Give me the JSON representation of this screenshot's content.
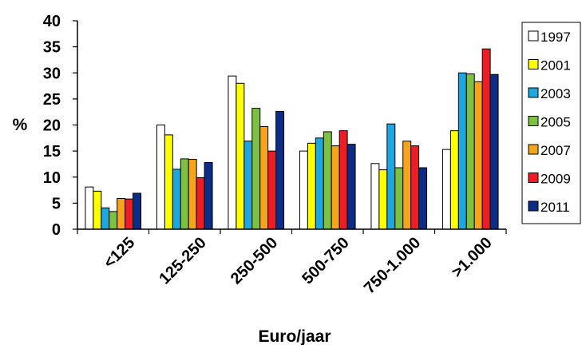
{
  "chart_data": {
    "type": "bar",
    "xlabel": "Euro/jaar",
    "ylabel": "%",
    "ylim": [
      0,
      40
    ],
    "yticks": [
      0,
      5,
      10,
      15,
      20,
      25,
      30,
      35,
      40
    ],
    "grid": false,
    "legend_position": "right",
    "categories": [
      "<125",
      "125-250",
      "250-500",
      "500-750",
      "750-1.000",
      ">1.000"
    ],
    "series": [
      {
        "name": "1997",
        "color": "#ffffff",
        "values": [
          8.1,
          20.0,
          29.4,
          15.0,
          12.6,
          15.3
        ]
      },
      {
        "name": "2001",
        "color": "#ffff00",
        "values": [
          7.3,
          18.1,
          28.0,
          16.5,
          11.4,
          18.9
        ]
      },
      {
        "name": "2003",
        "color": "#1ea6e0",
        "values": [
          4.1,
          11.5,
          16.9,
          17.5,
          20.2,
          30.0
        ]
      },
      {
        "name": "2005",
        "color": "#7cc142",
        "values": [
          3.4,
          13.5,
          23.2,
          18.7,
          11.8,
          29.8
        ]
      },
      {
        "name": "2007",
        "color": "#f5a41b",
        "values": [
          5.9,
          13.4,
          19.7,
          16.0,
          16.9,
          28.3
        ]
      },
      {
        "name": "2009",
        "color": "#ee1c24",
        "values": [
          5.8,
          9.9,
          15.0,
          18.9,
          16.0,
          34.6
        ]
      },
      {
        "name": "2011",
        "color": "#0b2d87",
        "values": [
          6.9,
          12.8,
          22.6,
          16.3,
          11.8,
          29.7
        ]
      }
    ]
  }
}
